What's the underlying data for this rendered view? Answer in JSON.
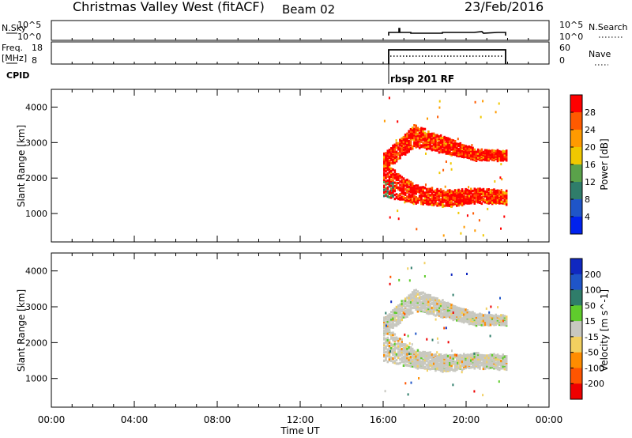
{
  "header": {
    "title": "Christmas Valley West (fitACF)",
    "beam": "Beam 02",
    "date": "23/Feb/2016"
  },
  "noise_panel": {
    "left_label": "N.Sky",
    "right_label": "N.Search",
    "left_ticks": [
      "10^5",
      "10^0"
    ],
    "right_ticks": [
      "10^5",
      "10^0"
    ]
  },
  "freq_panel": {
    "left_label_1": "Freq.",
    "left_label_2": "[MHz]",
    "right_label": "Nave",
    "left_ticks": [
      "18",
      "8"
    ],
    "right_ticks": [
      "60",
      "0"
    ]
  },
  "cpid": {
    "label": "CPID",
    "program": "rbsp 201 RF"
  },
  "colors": {
    "power_scale": [
      "#0022ee",
      "#1f55c8",
      "#2f7d6a",
      "#5aa24a",
      "#f0c800",
      "#ff9a00",
      "#ff5a00",
      "#ff0000"
    ],
    "velocity_scale": [
      "#ee0000",
      "#ff5500",
      "#ff8c00",
      "#f2d060",
      "#c8c8c0",
      "#5fcc2c",
      "#2f7d6a",
      "#1f55c8",
      "#1028c0"
    ]
  },
  "chart_data": [
    {
      "type": "heatmap",
      "title": "",
      "xlabel": "",
      "ylabel": "Slant Range [km]",
      "xlim": [
        0,
        24
      ],
      "ylim": [
        200,
        4500
      ],
      "x_ticks_hours": [
        0,
        4,
        8,
        12,
        16,
        20,
        24
      ],
      "y_ticks": [
        1000,
        2000,
        3000,
        4000
      ],
      "y_tick_labels": [
        "1000",
        "2000",
        "3000",
        "4000"
      ],
      "data_interval_hours": [
        16.0,
        21.9
      ],
      "colorbar": {
        "label": "Power [dB]",
        "tick_labels": [
          "28",
          "24",
          "20",
          "16",
          "12",
          "8",
          "4"
        ],
        "range": [
          0,
          32
        ]
      },
      "echo_bands": [
        {
          "t_start": 16.0,
          "t_end": 21.9,
          "range_lower_km": [
            1500,
            1300,
            1200,
            1300,
            1250
          ],
          "range_upper_km": [
            2500,
            1800,
            1650,
            1700,
            1650
          ],
          "power_db": 28
        },
        {
          "t_start": 16.0,
          "t_end": 21.9,
          "range_lower_km": [
            2200,
            2900,
            2700,
            2500,
            2500
          ],
          "range_upper_km": [
            2700,
            3500,
            3150,
            2800,
            2750
          ],
          "power_db": 28
        }
      ]
    },
    {
      "type": "heatmap",
      "title": "",
      "xlabel": "Time UT",
      "ylabel": "Slant Range [km]",
      "xlim": [
        0,
        24
      ],
      "ylim": [
        200,
        4500
      ],
      "x_ticks_hours": [
        0,
        4,
        8,
        12,
        16,
        20,
        24
      ],
      "x_tick_labels": [
        "00:00",
        "04:00",
        "08:00",
        "12:00",
        "16:00",
        "20:00",
        "00:00"
      ],
      "y_ticks": [
        1000,
        2000,
        3000,
        4000
      ],
      "y_tick_labels": [
        "1000",
        "2000",
        "3000",
        "4000"
      ],
      "data_interval_hours": [
        16.0,
        21.9
      ],
      "colorbar": {
        "label": "Velocity [m s^-1]",
        "tick_labels": [
          "200",
          "100",
          "50",
          "15",
          "-15",
          "-50",
          "-100",
          "-200"
        ],
        "range": [
          -250,
          250
        ]
      },
      "echo_bands": [
        {
          "t_start": 16.0,
          "t_end": 21.9,
          "range_lower_km": [
            1500,
            1300,
            1200,
            1300,
            1250
          ],
          "range_upper_km": [
            2500,
            1800,
            1650,
            1700,
            1650
          ],
          "velocity_ms": 0
        },
        {
          "t_start": 16.0,
          "t_end": 21.9,
          "range_lower_km": [
            2200,
            2900,
            2700,
            2500,
            2500
          ],
          "range_upper_km": [
            2700,
            3500,
            3150,
            2800,
            2750
          ],
          "velocity_ms": 0
        }
      ]
    }
  ]
}
